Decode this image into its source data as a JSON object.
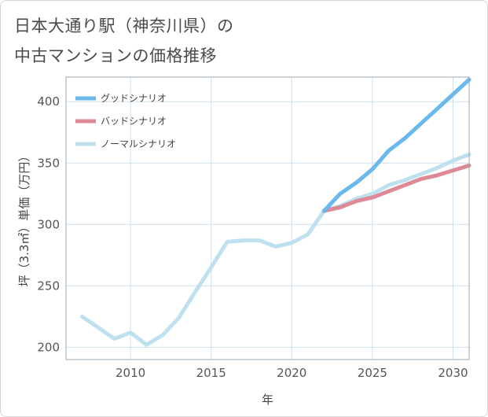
{
  "title_line1": "日本大通り駅（神奈川県）の",
  "title_line2": "中古マンションの価格推移",
  "colors": {
    "good": "#6ab8ec",
    "bad": "#de8a96",
    "normal": "#bfe1ef",
    "grid": "#cfe0ea",
    "frame": "#9aa9b3"
  },
  "chart_data": {
    "type": "line",
    "title": "日本大通り駅（神奈川県）の中古マンションの価格推移",
    "xlabel": "年",
    "ylabel": "坪（3.3㎡）単価（万円）",
    "xlim": [
      2006,
      2031
    ],
    "ylim": [
      190,
      420
    ],
    "x_ticks": [
      2010,
      2015,
      2020,
      2025,
      2030
    ],
    "y_ticks": [
      200,
      250,
      300,
      350,
      400
    ],
    "grid": true,
    "legend_position": "top-left",
    "series": [
      {
        "key": "good",
        "name": "グッドシナリオ",
        "x": [
          2022,
          2023,
          2024,
          2025,
          2026,
          2027,
          2028,
          2029,
          2030,
          2031
        ],
        "values": [
          311,
          325,
          334,
          345,
          360,
          370,
          382,
          394,
          406,
          418
        ]
      },
      {
        "key": "bad",
        "name": "バッドシナリオ",
        "x": [
          2022,
          2023,
          2024,
          2025,
          2026,
          2027,
          2028,
          2029,
          2030,
          2031
        ],
        "values": [
          311,
          314,
          319,
          322,
          327,
          332,
          337,
          340,
          344,
          348
        ]
      },
      {
        "key": "normal",
        "name": "ノーマルシナリオ",
        "x": [
          2007,
          2008,
          2009,
          2010,
          2011,
          2012,
          2013,
          2014,
          2015,
          2016,
          2017,
          2018,
          2019,
          2020,
          2021,
          2022,
          2023,
          2024,
          2025,
          2026,
          2027,
          2028,
          2029,
          2030,
          2031
        ],
        "values": [
          225,
          216,
          207,
          212,
          202,
          210,
          224,
          245,
          265,
          286,
          287,
          287,
          282,
          285,
          292,
          311,
          315,
          321,
          325,
          332,
          336,
          341,
          346,
          352,
          357
        ]
      }
    ]
  }
}
